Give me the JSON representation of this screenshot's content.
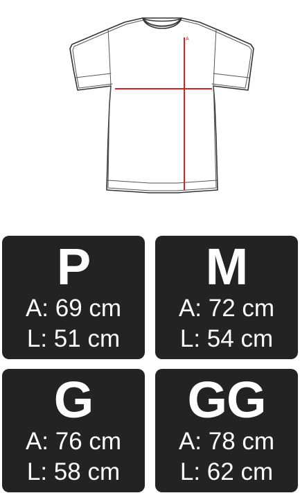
{
  "diagram": {
    "image": "tshirt-measurement-outline",
    "marker_label": "A",
    "line_color": "#e02020",
    "outline_color": "#333333"
  },
  "sizes": [
    {
      "letter": "P",
      "width": "A: 69 cm",
      "length": "L: 51 cm"
    },
    {
      "letter": "M",
      "width": "A: 72 cm",
      "length": "L: 54 cm"
    },
    {
      "letter": "G",
      "width": "A: 76 cm",
      "length": "L: 58 cm"
    },
    {
      "letter": "GG",
      "width": "A: 78 cm",
      "length": "L: 62 cm"
    }
  ],
  "colors": {
    "card_background": "#232323",
    "card_text": "#ffffff",
    "page_background": "#ffffff"
  }
}
